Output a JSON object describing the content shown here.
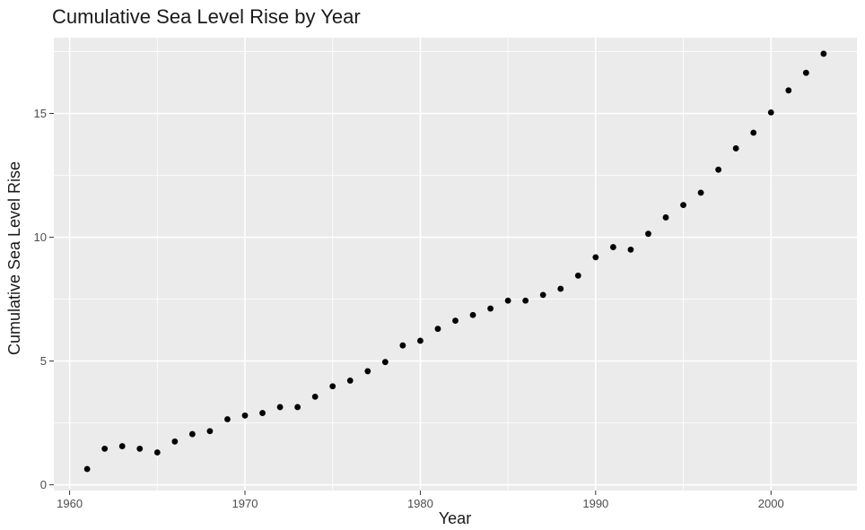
{
  "chart_data": {
    "type": "scatter",
    "title": "Cumulative Sea Level Rise by Year",
    "xlabel": "Year",
    "ylabel": "Cumulative Sea Level Rise",
    "xlim": [
      1959.1,
      2004.9
    ],
    "ylim": [
      -0.23,
      18.06
    ],
    "x_ticks": [
      1960,
      1970,
      1980,
      1990,
      2000
    ],
    "y_ticks": [
      0,
      5,
      10,
      15
    ],
    "grid": true,
    "point_color": "#000000",
    "panel_color": "#ebebeb",
    "grid_color": "#ffffff",
    "x": [
      1961,
      1962,
      1963,
      1964,
      1965,
      1966,
      1967,
      1968,
      1969,
      1970,
      1971,
      1972,
      1973,
      1974,
      1975,
      1976,
      1977,
      1978,
      1979,
      1980,
      1981,
      1982,
      1983,
      1984,
      1985,
      1986,
      1987,
      1988,
      1989,
      1990,
      1991,
      1992,
      1993,
      1994,
      1995,
      1996,
      1997,
      1998,
      1999,
      2000,
      2001,
      2002,
      2003
    ],
    "y": [
      0.64,
      1.46,
      1.56,
      1.46,
      1.31,
      1.75,
      2.05,
      2.17,
      2.65,
      2.8,
      2.9,
      3.14,
      3.14,
      3.56,
      3.98,
      4.21,
      4.59,
      4.96,
      5.63,
      5.82,
      6.3,
      6.63,
      6.86,
      7.12,
      7.44,
      7.44,
      7.67,
      7.92,
      8.45,
      9.19,
      9.6,
      9.5,
      10.14,
      10.8,
      11.3,
      11.8,
      12.73,
      13.59,
      14.22,
      15.04,
      15.93,
      16.64,
      17.41
    ]
  }
}
